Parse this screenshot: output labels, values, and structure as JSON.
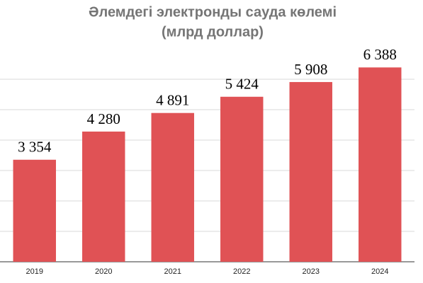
{
  "chart_data": {
    "type": "bar",
    "title": "Әлемдегі электронды сауда көлемі",
    "subtitle": "(млрд доллар)",
    "categories": [
      "2019",
      "2020",
      "2021",
      "2022",
      "2023",
      "2024"
    ],
    "values": [
      3354,
      4280,
      4891,
      5424,
      5908,
      6388
    ],
    "value_labels": [
      "3 354",
      "4 280",
      "4 891",
      "5 424",
      "5 908",
      "6 388"
    ],
    "color": "#e05255",
    "ylim": [
      0,
      6500
    ],
    "yticks": [
      0,
      1000,
      2000,
      3000,
      4000,
      5000,
      6000
    ],
    "grid": true
  }
}
